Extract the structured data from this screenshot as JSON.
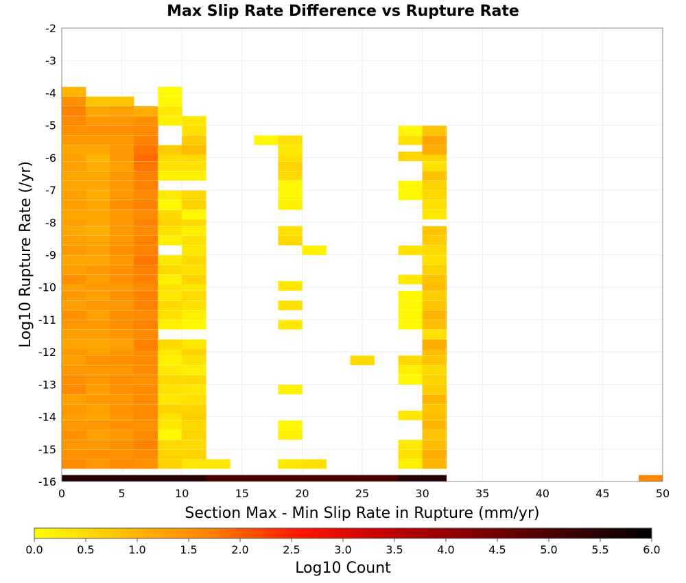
{
  "chart_data": {
    "type": "heatmap",
    "title": "Max Slip Rate Difference vs Rupture Rate",
    "xlabel": "Section Max - Min Slip Rate in Rupture (mm/yr)",
    "ylabel": "Log10 Rupture Rate (/yr)",
    "xlim": [
      0,
      50
    ],
    "ylim": [
      -16,
      -2
    ],
    "x_ticks": [
      "0",
      "5",
      "10",
      "15",
      "20",
      "25",
      "30",
      "35",
      "40",
      "45",
      "50"
    ],
    "y_ticks": [
      "-2",
      "-3",
      "-4",
      "-5",
      "-6",
      "-7",
      "-8",
      "-9",
      "-10",
      "-11",
      "-12",
      "-13",
      "-14",
      "-15",
      "-16"
    ],
    "x_bin_width": 2,
    "y_bin_height": 0.2857,
    "grid": true,
    "colorbar": {
      "label": "Log10 Count",
      "range": [
        0,
        6
      ],
      "ticks": [
        "0.0",
        "0.5",
        "1.0",
        "1.5",
        "2.0",
        "2.5",
        "3.0",
        "3.5",
        "4.0",
        "4.5",
        "5.0",
        "5.5",
        "6.0"
      ],
      "colors": [
        "#ffff00",
        "#ffc000",
        "#ff8000",
        "#ff1800",
        "#c00000",
        "#800000",
        "#400000",
        "#000000"
      ]
    },
    "columns": [
      {
        "x": 0,
        "ys": [
          -16,
          -15.6,
          -15.3,
          -15,
          -14.7,
          -14.4,
          -14.1,
          -13.9,
          -13.6,
          -13.3,
          -13,
          -12.7,
          -12.4,
          -12.1,
          -11.9,
          -11.6,
          -11.3,
          -11,
          -10.7,
          -10.4,
          -10.1,
          -9.9,
          -9.6,
          -9.3,
          -9,
          -8.7,
          -8.4,
          -8.1,
          -7.9,
          -7.6,
          -7.3,
          -7,
          -6.7,
          -6.4,
          -6.1,
          -5.9,
          -5.6,
          -5.3,
          -5,
          -4.7,
          -4.4,
          -4.1
        ],
        "values": [
          5.5,
          1.6,
          1.5,
          1.4,
          1.5,
          1.4,
          1.3,
          1.4,
          1.3,
          1.6,
          1.5,
          1.4,
          1.3,
          1.4,
          1.2,
          1.3,
          1.4,
          1.5,
          1.3,
          1.4,
          1.3,
          1.5,
          1.3,
          1.2,
          1.4,
          1.3,
          1.2,
          1.3,
          1.2,
          1.3,
          1.3,
          1.2,
          1.2,
          1.3,
          1.3,
          1.2,
          1.4,
          1.5,
          1.6,
          1.7,
          1.5,
          1.0
        ]
      },
      {
        "x": 2,
        "ys": [
          -16,
          -15.6,
          -15.3,
          -15,
          -14.7,
          -14.4,
          -14.1,
          -13.9,
          -13.6,
          -13.3,
          -13,
          -12.7,
          -12.4,
          -12.1,
          -11.9,
          -11.6,
          -11.3,
          -11,
          -10.7,
          -10.4,
          -10.1,
          -9.9,
          -9.6,
          -9.3,
          -9,
          -8.7,
          -8.4,
          -8.1,
          -7.9,
          -7.6,
          -7.3,
          -7,
          -6.7,
          -6.4,
          -6.1,
          -5.9,
          -5.6,
          -5.3,
          -5,
          -4.7,
          -4.4
        ],
        "values": [
          5.5,
          1.4,
          1.5,
          1.4,
          1.3,
          1.4,
          1.2,
          1.3,
          1.4,
          1.3,
          1.4,
          1.4,
          1.5,
          1.3,
          1.2,
          1.3,
          1.4,
          1.3,
          1.4,
          1.3,
          1.4,
          1.3,
          1.4,
          1.2,
          1.3,
          1.2,
          1.1,
          1.2,
          1.2,
          1.2,
          1.1,
          1.2,
          1.2,
          1.1,
          1.0,
          1.2,
          1.4,
          1.5,
          1.4,
          1.2,
          0.8
        ]
      },
      {
        "x": 4,
        "ys": [
          -16,
          -15.6,
          -15.3,
          -15,
          -14.7,
          -14.4,
          -14.1,
          -13.9,
          -13.6,
          -13.3,
          -13,
          -12.7,
          -12.4,
          -12.1,
          -11.9,
          -11.6,
          -11.3,
          -11,
          -10.7,
          -10.4,
          -10.1,
          -9.9,
          -9.6,
          -9.3,
          -9,
          -8.7,
          -8.4,
          -8.1,
          -7.9,
          -7.6,
          -7.3,
          -7,
          -6.7,
          -6.4,
          -6.1,
          -5.9,
          -5.6,
          -5.3,
          -5,
          -4.7,
          -4.4
        ],
        "values": [
          5.5,
          1.6,
          1.5,
          1.5,
          1.4,
          1.5,
          1.4,
          1.5,
          1.4,
          1.5,
          1.5,
          1.4,
          1.5,
          1.4,
          1.3,
          1.4,
          1.5,
          1.5,
          1.4,
          1.5,
          1.4,
          1.5,
          1.5,
          1.4,
          1.5,
          1.4,
          1.4,
          1.4,
          1.4,
          1.5,
          1.4,
          1.4,
          1.4,
          1.3,
          1.4,
          1.4,
          1.4,
          1.5,
          1.4,
          1.3,
          0.8
        ]
      },
      {
        "x": 6,
        "ys": [
          -16,
          -15.6,
          -15.3,
          -15,
          -14.7,
          -14.4,
          -14.1,
          -13.9,
          -13.6,
          -13.3,
          -13,
          -12.7,
          -12.4,
          -12.1,
          -11.9,
          -11.6,
          -11.3,
          -11,
          -10.7,
          -10.4,
          -10.1,
          -9.9,
          -9.6,
          -9.3,
          -9,
          -8.7,
          -8.4,
          -8.1,
          -7.9,
          -7.6,
          -7.3,
          -7,
          -6.7,
          -6.4,
          -6.1,
          -5.9,
          -5.6,
          -5.3,
          -5,
          -4.7
        ],
        "values": [
          5.5,
          1.5,
          1.6,
          1.7,
          1.6,
          1.5,
          1.6,
          1.6,
          1.6,
          1.6,
          1.5,
          1.6,
          1.6,
          1.6,
          1.7,
          1.6,
          1.7,
          1.6,
          1.7,
          1.7,
          1.6,
          1.7,
          1.7,
          1.8,
          1.7,
          1.7,
          1.6,
          1.7,
          1.6,
          1.7,
          1.6,
          1.7,
          1.7,
          1.8,
          1.9,
          1.8,
          1.7,
          1.6,
          1.5,
          1.1
        ]
      },
      {
        "x": 8,
        "ys": [
          -16,
          -15.6,
          -15.3,
          -15,
          -14.7,
          -14.4,
          -14.1,
          -13.9,
          -13.6,
          -13.3,
          -13,
          -12.7,
          -12.4,
          -12.1,
          -11.9,
          -11.3,
          -11,
          -10.7,
          -10.4,
          -10.1,
          -9.9,
          -9.6,
          -9.3,
          -8.7,
          -8.4,
          -8.1,
          -7.9,
          -7.6,
          -7.3,
          -6.7,
          -6.4,
          -6.1,
          -5.9,
          -5,
          -4.7,
          -4.4,
          -4.1
        ],
        "values": [
          5.5,
          0.6,
          0.6,
          0.5,
          0.1,
          0.3,
          0.4,
          0.6,
          0.3,
          0.4,
          0.5,
          0.3,
          0.2,
          0.3,
          0.5,
          0.2,
          0.4,
          0.5,
          0.3,
          0.4,
          0.2,
          0.5,
          0.3,
          0.2,
          0.4,
          0.6,
          0.5,
          0.1,
          0.3,
          0.2,
          0.4,
          0.5,
          0.7,
          0.2,
          0.3,
          0.1,
          0.05
        ]
      },
      {
        "x": 10,
        "ys": [
          -16,
          -15.6,
          -15.3,
          -15,
          -14.7,
          -14.4,
          -14.1,
          -13.9,
          -13.6,
          -13.3,
          -13,
          -12.7,
          -12.4,
          -12.1,
          -11.9,
          -11.3,
          -11,
          -10.7,
          -10.4,
          -10.1,
          -9.9,
          -9.6,
          -9.3,
          -9,
          -8.7,
          -8.4,
          -8.1,
          -7.9,
          -7.6,
          -7.3,
          -6.7,
          -6.4,
          -6.1,
          -5.9,
          -5.6,
          -5.3,
          -5
        ],
        "values": [
          5.5,
          0.3,
          0.6,
          0.5,
          0.6,
          0.5,
          0.7,
          0.6,
          0.4,
          0.3,
          0.5,
          0.2,
          0.4,
          0.6,
          0.3,
          0.1,
          0.2,
          0.4,
          0.5,
          0.3,
          0.6,
          0.4,
          0.5,
          0.3,
          0.4,
          0.2,
          0.5,
          0.1,
          0.6,
          0.5,
          0.2,
          0.4,
          0.5,
          0.9,
          0.7,
          0.4,
          0.3
        ]
      },
      {
        "x": 12,
        "ys": [
          -16,
          -15.6
        ],
        "values": [
          5.0,
          0.3
        ]
      },
      {
        "x": 14,
        "ys": [
          -16
        ],
        "values": [
          5.0
        ]
      },
      {
        "x": 16,
        "ys": [
          -16,
          -5.6
        ],
        "values": [
          5.0,
          0.1
        ]
      },
      {
        "x": 18,
        "ys": [
          -16,
          -15.6,
          -14.7,
          -14.4,
          -13.3,
          -11.3,
          -10.7,
          -10.1,
          -8.7,
          -8.4,
          -7.6,
          -7.3,
          -7,
          -6.7,
          -6.4,
          -6.1,
          -5.9,
          -5.6
        ],
        "values": [
          5.0,
          0.3,
          0.2,
          0.1,
          0.2,
          0.3,
          0.4,
          0.3,
          0.5,
          0.4,
          0.2,
          0.1,
          0.1,
          0.5,
          0.6,
          0.4,
          0.3,
          0.4
        ]
      },
      {
        "x": 20,
        "ys": [
          -16,
          -15.6,
          -9
        ],
        "values": [
          5.0,
          0.4,
          0.2
        ]
      },
      {
        "x": 22,
        "ys": [
          -16
        ],
        "values": [
          5.0
        ]
      },
      {
        "x": 24,
        "ys": [
          -16,
          -12.4
        ],
        "values": [
          5.0,
          0.5
        ]
      },
      {
        "x": 26,
        "ys": [
          -16
        ],
        "values": [
          5.0
        ]
      },
      {
        "x": 28,
        "ys": [
          -16,
          -15.6,
          -15.3,
          -15,
          -14.1,
          -13,
          -12.7,
          -12.4,
          -11.3,
          -11,
          -10.7,
          -10.4,
          -9.9,
          -9,
          -7.3,
          -7,
          -6.1,
          -5.6,
          -5.3
        ],
        "values": [
          5.5,
          0.2,
          0.4,
          0.3,
          0.3,
          0.1,
          0.2,
          0.5,
          0.1,
          0.1,
          0.1,
          0.1,
          0.3,
          0.4,
          0.1,
          0.1,
          0.6,
          0.4,
          0.1
        ]
      },
      {
        "x": 30,
        "ys": [
          -16,
          -15.6,
          -15.3,
          -15,
          -14.7,
          -14.4,
          -14.1,
          -13.9,
          -13.6,
          -13.3,
          -13,
          -12.7,
          -12.4,
          -12.1,
          -11.9,
          -11.6,
          -11.3,
          -11,
          -10.7,
          -10.4,
          -10.1,
          -9.9,
          -9.6,
          -9.3,
          -9,
          -8.7,
          -8.4,
          -7.9,
          -7.6,
          -7.3,
          -7,
          -6.7,
          -6.4,
          -6.1,
          -5.9,
          -5.6,
          -5.3
        ],
        "values": [
          5.5,
          1.0,
          1.1,
          0.9,
          0.8,
          1.0,
          0.9,
          0.8,
          1.0,
          0.7,
          0.6,
          0.5,
          0.8,
          0.9,
          1.1,
          0.4,
          0.9,
          1.0,
          0.8,
          0.7,
          0.9,
          0.8,
          0.6,
          0.4,
          0.5,
          0.7,
          0.8,
          0.3,
          0.4,
          0.5,
          0.6,
          0.8,
          0.4,
          0.6,
          1.1,
          1.2,
          0.8
        ]
      },
      {
        "x": 48,
        "ys": [
          -16
        ],
        "values": [
          1.6
        ]
      }
    ]
  }
}
